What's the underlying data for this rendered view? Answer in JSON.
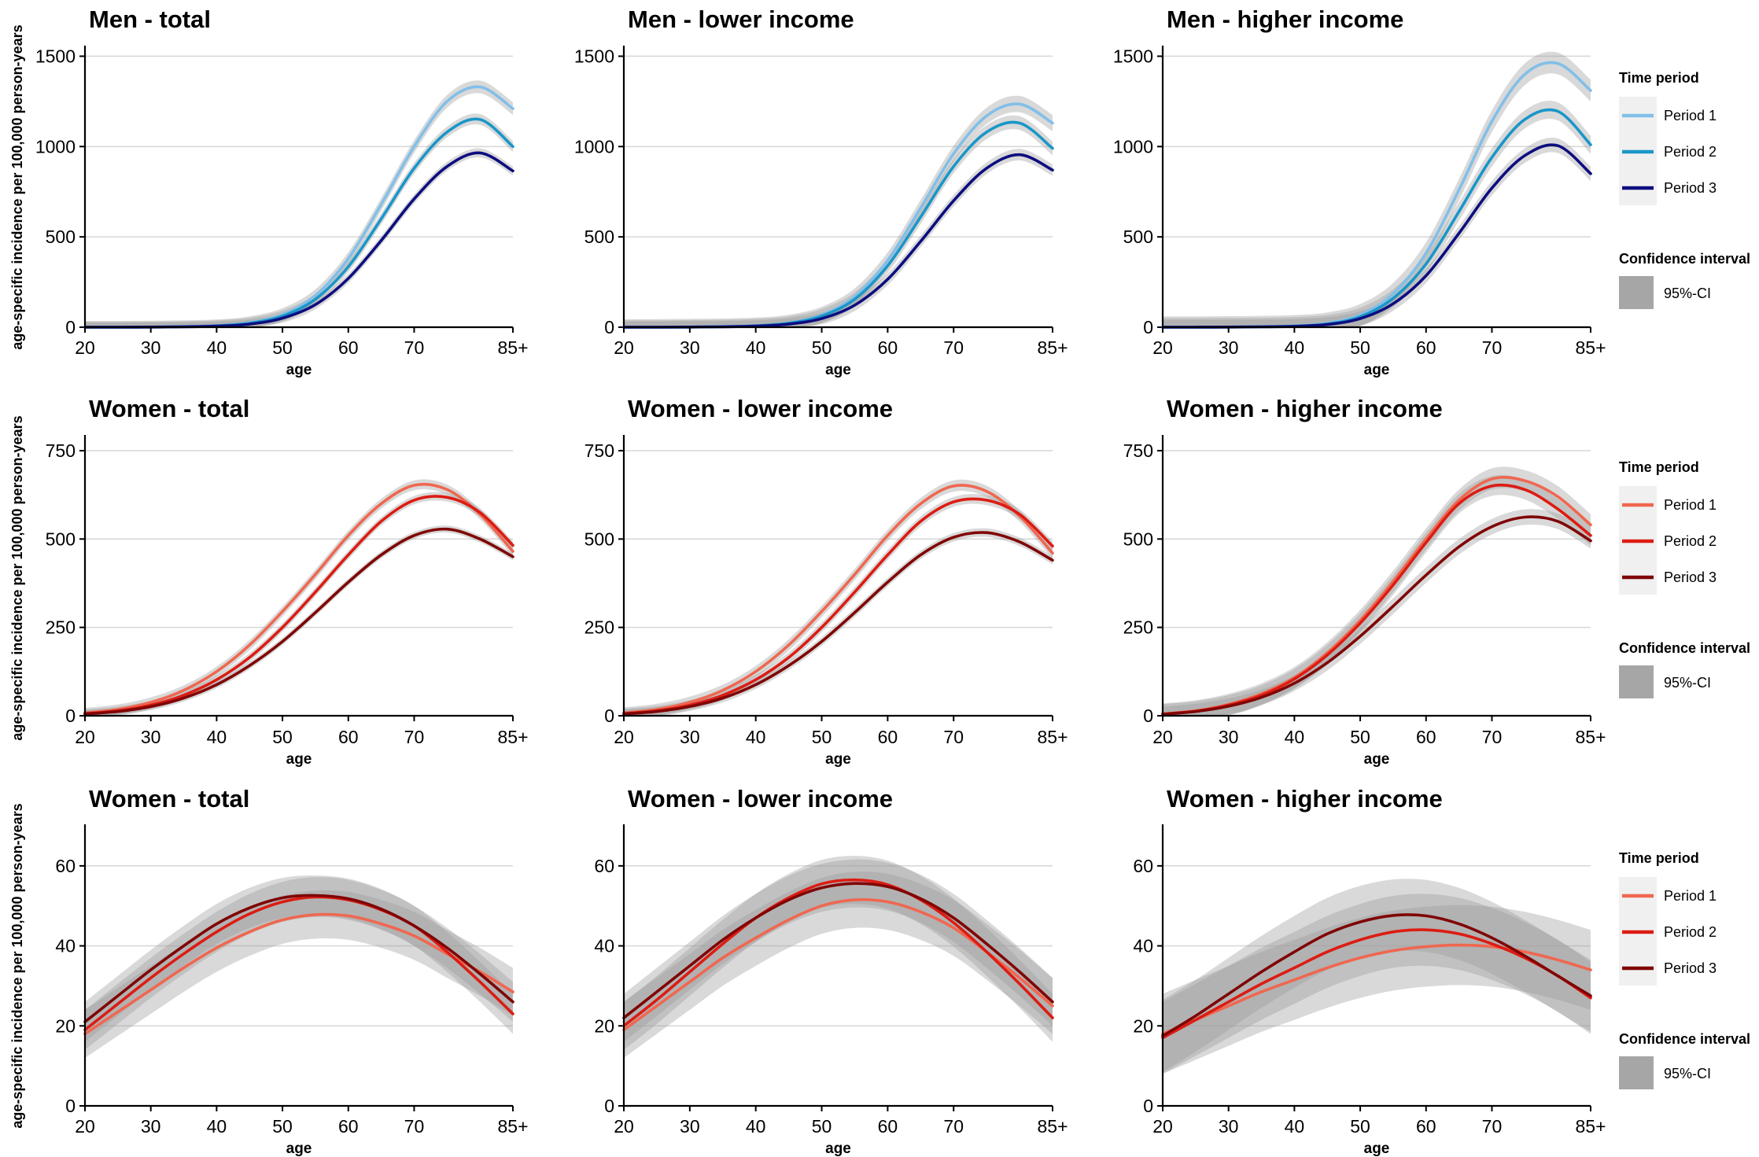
{
  "figure": {
    "ylabel": "age-specific incidence per 100,000 person-years"
  },
  "legends": [
    {
      "title": "Time period",
      "items": [
        "Period 1",
        "Period 2",
        "Period 3"
      ],
      "colors": [
        "#82bfe8",
        "#1a96c9",
        "#0d0d80"
      ],
      "ci_title": "Confidence interval",
      "ci_label": "95%-CI"
    },
    {
      "title": "Time period",
      "items": [
        "Period 1",
        "Period 2",
        "Period 3"
      ],
      "colors": [
        "#ef6750",
        "#dc1c13",
        "#800505"
      ],
      "ci_title": "Confidence interval",
      "ci_label": "95%-CI"
    },
    {
      "title": "Time period",
      "items": [
        "Period 1",
        "Period 2",
        "Period 3"
      ],
      "colors": [
        "#ef6750",
        "#dc1c13",
        "#800505"
      ],
      "ci_title": "Confidence interval",
      "ci_label": "95%-CI"
    }
  ],
  "chart_data": [
    {
      "type": "line",
      "title": "Men - total",
      "xlabel": "age",
      "xticks": [
        "20",
        "30",
        "40",
        "50",
        "60",
        "70",
        "85+"
      ],
      "xlim": [
        20,
        85
      ],
      "yticks": [
        0,
        500,
        1000,
        1500
      ],
      "ylim": [
        0,
        1550
      ],
      "grid": "horizontal",
      "ci": "95%-CI",
      "x": [
        20,
        25,
        30,
        35,
        40,
        45,
        50,
        55,
        60,
        65,
        70,
        75,
        80,
        85
      ],
      "series": [
        {
          "name": "Period 1",
          "values": [
            0,
            0,
            1,
            3,
            8,
            25,
            70,
            175,
            380,
            680,
            1000,
            1250,
            1330,
            1210
          ],
          "ci_halfwidth": 35
        },
        {
          "name": "Period 2",
          "values": [
            0,
            0,
            1,
            3,
            8,
            22,
            62,
            155,
            335,
            600,
            880,
            1080,
            1150,
            1000
          ],
          "ci_halfwidth": 30
        },
        {
          "name": "Period 3",
          "values": [
            0,
            0,
            1,
            2,
            6,
            17,
            50,
            125,
            270,
            480,
            710,
            890,
            965,
            865
          ],
          "ci_halfwidth": 25
        }
      ]
    },
    {
      "type": "line",
      "title": "Men - lower income",
      "xlabel": "age",
      "xticks": [
        "20",
        "30",
        "40",
        "50",
        "60",
        "70",
        "85+"
      ],
      "xlim": [
        20,
        85
      ],
      "yticks": [
        0,
        500,
        1000,
        1500
      ],
      "ylim": [
        0,
        1550
      ],
      "grid": "horizontal",
      "ci": "95%-CI",
      "x": [
        20,
        25,
        30,
        35,
        40,
        45,
        50,
        55,
        60,
        65,
        70,
        75,
        80,
        85
      ],
      "series": [
        {
          "name": "Period 1",
          "values": [
            0,
            0,
            1,
            3,
            8,
            24,
            68,
            170,
            370,
            660,
            960,
            1170,
            1235,
            1130
          ],
          "ci_halfwidth": 45
        },
        {
          "name": "Period 2",
          "values": [
            0,
            0,
            1,
            3,
            8,
            22,
            62,
            155,
            340,
            610,
            890,
            1080,
            1130,
            990
          ],
          "ci_halfwidth": 38
        },
        {
          "name": "Period 3",
          "values": [
            0,
            0,
            1,
            2,
            6,
            17,
            48,
            122,
            265,
            475,
            700,
            880,
            955,
            870
          ],
          "ci_halfwidth": 32
        }
      ]
    },
    {
      "type": "line",
      "title": "Men - higher income",
      "xlabel": "age",
      "xticks": [
        "20",
        "30",
        "40",
        "50",
        "60",
        "70",
        "85+"
      ],
      "xlim": [
        20,
        85
      ],
      "yticks": [
        0,
        500,
        1000,
        1500
      ],
      "ylim": [
        0,
        1550
      ],
      "grid": "horizontal",
      "ci": "95%-CI",
      "x": [
        20,
        25,
        30,
        35,
        40,
        45,
        50,
        55,
        60,
        65,
        70,
        75,
        80,
        85
      ],
      "series": [
        {
          "name": "Period 1",
          "values": [
            0,
            0,
            1,
            3,
            7,
            22,
            68,
            185,
            410,
            760,
            1140,
            1400,
            1460,
            1310
          ],
          "ci_halfwidth": 60
        },
        {
          "name": "Period 2",
          "values": [
            0,
            0,
            1,
            2,
            6,
            18,
            58,
            160,
            350,
            640,
            940,
            1150,
            1195,
            1010
          ],
          "ci_halfwidth": 50
        },
        {
          "name": "Period 3",
          "values": [
            0,
            0,
            1,
            2,
            5,
            15,
            48,
            130,
            285,
            520,
            770,
            950,
            1005,
            850
          ],
          "ci_halfwidth": 40
        }
      ]
    },
    {
      "type": "line",
      "title": "Women - total",
      "xlabel": "age",
      "xticks": [
        "20",
        "30",
        "40",
        "50",
        "60",
        "70",
        "85+"
      ],
      "xlim": [
        20,
        85
      ],
      "yticks": [
        0,
        250,
        500,
        750
      ],
      "ylim": [
        0,
        790
      ],
      "grid": "horizontal",
      "ci": "95%-CI",
      "x": [
        20,
        25,
        30,
        35,
        40,
        45,
        50,
        55,
        60,
        65,
        70,
        75,
        80,
        85
      ],
      "series": [
        {
          "name": "Period 1",
          "values": [
            8,
            18,
            38,
            72,
            125,
            200,
            295,
            400,
            510,
            600,
            652,
            640,
            570,
            465
          ],
          "ci_halfwidth": 14
        },
        {
          "name": "Period 2",
          "values": [
            6,
            14,
            30,
            58,
            102,
            165,
            250,
            350,
            455,
            550,
            610,
            618,
            575,
            482
          ],
          "ci_halfwidth": 12
        },
        {
          "name": "Period 3",
          "values": [
            5,
            12,
            26,
            50,
            88,
            142,
            210,
            292,
            378,
            455,
            510,
            528,
            500,
            450
          ],
          "ci_halfwidth": 10
        }
      ]
    },
    {
      "type": "line",
      "title": "Women - lower income",
      "xlabel": "age",
      "xticks": [
        "20",
        "30",
        "40",
        "50",
        "60",
        "70",
        "85+"
      ],
      "xlim": [
        20,
        85
      ],
      "yticks": [
        0,
        250,
        500,
        750
      ],
      "ylim": [
        0,
        790
      ],
      "grid": "horizontal",
      "ci": "95%-CI",
      "x": [
        20,
        25,
        30,
        35,
        40,
        45,
        50,
        55,
        60,
        65,
        70,
        75,
        80,
        85
      ],
      "series": [
        {
          "name": "Period 1",
          "values": [
            8,
            18,
            38,
            72,
            125,
            200,
            295,
            400,
            510,
            600,
            650,
            635,
            565,
            460
          ],
          "ci_halfwidth": 16
        },
        {
          "name": "Period 2",
          "values": [
            6,
            14,
            30,
            58,
            102,
            165,
            250,
            350,
            455,
            550,
            605,
            610,
            570,
            480
          ],
          "ci_halfwidth": 14
        },
        {
          "name": "Period 3",
          "values": [
            5,
            12,
            26,
            50,
            88,
            142,
            210,
            292,
            378,
            455,
            505,
            518,
            492,
            440
          ],
          "ci_halfwidth": 12
        }
      ]
    },
    {
      "type": "line",
      "title": "Women - higher income",
      "xlabel": "age",
      "xticks": [
        "20",
        "30",
        "40",
        "50",
        "60",
        "70",
        "85+"
      ],
      "xlim": [
        20,
        85
      ],
      "yticks": [
        0,
        250,
        500,
        750
      ],
      "ylim": [
        0,
        790
      ],
      "grid": "horizontal",
      "ci": "95%-CI",
      "x": [
        20,
        25,
        30,
        35,
        40,
        45,
        50,
        55,
        60,
        65,
        70,
        75,
        80,
        85
      ],
      "series": [
        {
          "name": "Period 1",
          "values": [
            5,
            14,
            32,
            62,
            108,
            178,
            270,
            380,
            500,
            610,
            670,
            665,
            620,
            540
          ],
          "ci_halfwidth": 30
        },
        {
          "name": "Period 2",
          "values": [
            5,
            13,
            30,
            58,
            104,
            172,
            262,
            370,
            490,
            600,
            650,
            640,
            585,
            510
          ],
          "ci_halfwidth": 28
        },
        {
          "name": "Period 3",
          "values": [
            4,
            12,
            27,
            52,
            92,
            150,
            225,
            310,
            398,
            478,
            535,
            562,
            550,
            495
          ],
          "ci_halfwidth": 22
        }
      ]
    },
    {
      "type": "line",
      "title": "Women - total",
      "xlabel": "age",
      "xticks": [
        "20",
        "30",
        "40",
        "50",
        "60",
        "70",
        "85+"
      ],
      "xlim": [
        20,
        85
      ],
      "yticks": [
        0,
        20,
        40,
        60
      ],
      "ylim": [
        0,
        70
      ],
      "grid": "horizontal",
      "ci": "95%-CI",
      "x": [
        20,
        25,
        30,
        35,
        40,
        45,
        50,
        55,
        60,
        65,
        70,
        75,
        80,
        85
      ],
      "series": [
        {
          "name": "Period 1",
          "values": [
            18,
            23.5,
            29,
            34.5,
            39.5,
            43.5,
            46.5,
            47.8,
            47.5,
            45.5,
            42.5,
            38,
            33.5,
            28.5
          ],
          "ci_halfwidth": 6
        },
        {
          "name": "Period 2",
          "values": [
            19,
            25.5,
            32,
            38,
            43.5,
            48,
            51,
            52.2,
            51.5,
            49,
            45,
            38.5,
            31,
            23
          ],
          "ci_halfwidth": 5
        },
        {
          "name": "Period 3",
          "values": [
            21,
            27.5,
            34,
            40,
            45.5,
            49.5,
            52,
            52.6,
            51.8,
            49.2,
            45,
            39.5,
            33,
            26
          ],
          "ci_halfwidth": 5
        }
      ]
    },
    {
      "type": "line",
      "title": "Women - lower income",
      "xlabel": "age",
      "xticks": [
        "20",
        "30",
        "40",
        "50",
        "60",
        "70",
        "85+"
      ],
      "xlim": [
        20,
        85
      ],
      "yticks": [
        0,
        20,
        40,
        60
      ],
      "ylim": [
        0,
        70
      ],
      "grid": "horizontal",
      "ci": "95%-CI",
      "x": [
        20,
        25,
        30,
        35,
        40,
        45,
        50,
        55,
        60,
        65,
        70,
        75,
        80,
        85
      ],
      "series": [
        {
          "name": "Period 1",
          "values": [
            19,
            25,
            31,
            37,
            42,
            46.5,
            50,
            51.5,
            51,
            48.5,
            44.5,
            38.5,
            32,
            25
          ],
          "ci_halfwidth": 7
        },
        {
          "name": "Period 2",
          "values": [
            20,
            26.5,
            33.5,
            40.5,
            47,
            52,
            55.5,
            56.5,
            55.3,
            51.5,
            45.8,
            38.5,
            30.5,
            22
          ],
          "ci_halfwidth": 6
        },
        {
          "name": "Period 3",
          "values": [
            22,
            28.5,
            35,
            41.5,
            47,
            51.5,
            54.5,
            55.6,
            54.8,
            51.8,
            47,
            40.5,
            33.5,
            26
          ],
          "ci_halfwidth": 6
        }
      ]
    },
    {
      "type": "line",
      "title": "Women - higher income",
      "xlabel": "age",
      "xticks": [
        "20",
        "30",
        "40",
        "50",
        "60",
        "70",
        "85+"
      ],
      "xlim": [
        20,
        85
      ],
      "yticks": [
        0,
        20,
        40,
        60
      ],
      "ylim": [
        0,
        70
      ],
      "grid": "horizontal",
      "ci": "95%-CI",
      "x": [
        20,
        25,
        30,
        35,
        40,
        45,
        50,
        55,
        60,
        65,
        70,
        75,
        80,
        85
      ],
      "series": [
        {
          "name": "Period 1",
          "values": [
            18,
            21.5,
            25,
            28.5,
            31.5,
            34.5,
            37,
            38.8,
            39.8,
            40.2,
            39.8,
            38.5,
            36.5,
            34
          ],
          "ci_halfwidth": 10
        },
        {
          "name": "Period 2",
          "values": [
            17,
            21.5,
            26,
            30.5,
            34.5,
            38.5,
            41.5,
            43.5,
            44,
            43,
            40.5,
            37,
            32.5,
            27
          ],
          "ci_halfwidth": 9
        },
        {
          "name": "Period 3",
          "values": [
            17.5,
            22.5,
            28,
            33.5,
            38.5,
            43,
            46,
            47.6,
            47.5,
            45.5,
            42,
            37.5,
            32.5,
            27.5
          ],
          "ci_halfwidth": 9
        }
      ]
    }
  ]
}
